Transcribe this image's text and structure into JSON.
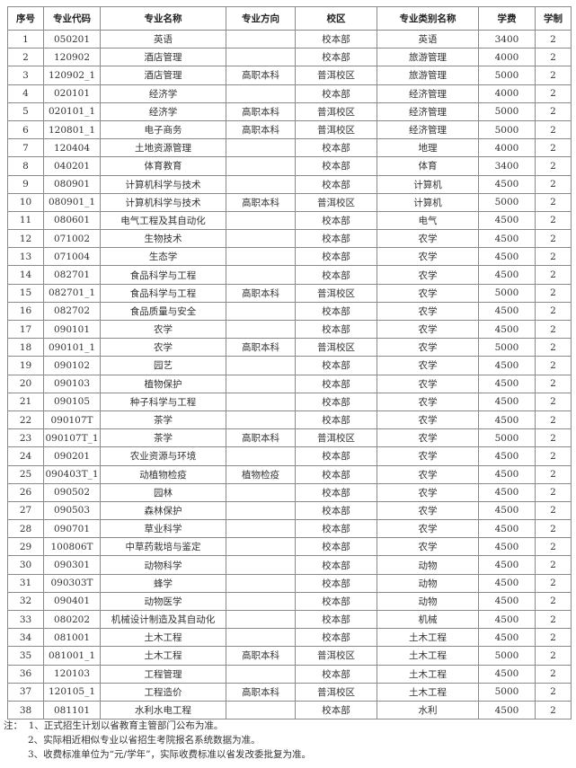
{
  "table": {
    "headers": [
      "序号",
      "专业代码",
      "专业名称",
      "专业方向",
      "校区",
      "专业类别名称",
      "学费",
      "学制"
    ],
    "rows": [
      [
        "1",
        "050201",
        "英语",
        "",
        "校本部",
        "英语",
        "3400",
        "2"
      ],
      [
        "2",
        "120902",
        "酒店管理",
        "",
        "校本部",
        "旅游管理",
        "4000",
        "2"
      ],
      [
        "3",
        "120902_1",
        "酒店管理",
        "高职本科",
        "普洱校区",
        "旅游管理",
        "5000",
        "2"
      ],
      [
        "4",
        "020101",
        "经济学",
        "",
        "校本部",
        "经济管理",
        "4000",
        "2"
      ],
      [
        "5",
        "020101_1",
        "经济学",
        "高职本科",
        "普洱校区",
        "经济管理",
        "5000",
        "2"
      ],
      [
        "6",
        "120801_1",
        "电子商务",
        "高职本科",
        "普洱校区",
        "经济管理",
        "5000",
        "2"
      ],
      [
        "7",
        "120404",
        "土地资源管理",
        "",
        "校本部",
        "地理",
        "4000",
        "2"
      ],
      [
        "8",
        "040201",
        "体育教育",
        "",
        "校本部",
        "体育",
        "3400",
        "2"
      ],
      [
        "9",
        "080901",
        "计算机科学与技术",
        "",
        "校本部",
        "计算机",
        "4500",
        "2"
      ],
      [
        "10",
        "080901_1",
        "计算机科学与技术",
        "高职本科",
        "普洱校区",
        "计算机",
        "5000",
        "2"
      ],
      [
        "11",
        "080601",
        "电气工程及其自动化",
        "",
        "校本部",
        "电气",
        "4500",
        "2"
      ],
      [
        "12",
        "071002",
        "生物技术",
        "",
        "校本部",
        "农学",
        "4500",
        "2"
      ],
      [
        "13",
        "071004",
        "生态学",
        "",
        "校本部",
        "农学",
        "4500",
        "2"
      ],
      [
        "14",
        "082701",
        "食品科学与工程",
        "",
        "校本部",
        "农学",
        "4500",
        "2"
      ],
      [
        "15",
        "082701_1",
        "食品科学与工程",
        "高职本科",
        "普洱校区",
        "农学",
        "5000",
        "2"
      ],
      [
        "16",
        "082702",
        "食品质量与安全",
        "",
        "校本部",
        "农学",
        "4500",
        "2"
      ],
      [
        "17",
        "090101",
        "农学",
        "",
        "校本部",
        "农学",
        "4500",
        "2"
      ],
      [
        "18",
        "090101_1",
        "农学",
        "高职本科",
        "普洱校区",
        "农学",
        "5000",
        "2"
      ],
      [
        "19",
        "090102",
        "园艺",
        "",
        "校本部",
        "农学",
        "4500",
        "2"
      ],
      [
        "20",
        "090103",
        "植物保护",
        "",
        "校本部",
        "农学",
        "4500",
        "2"
      ],
      [
        "21",
        "090105",
        "种子科学与工程",
        "",
        "校本部",
        "农学",
        "4500",
        "2"
      ],
      [
        "22",
        "090107T",
        "茶学",
        "",
        "校本部",
        "农学",
        "4500",
        "2"
      ],
      [
        "23",
        "090107T_1",
        "茶学",
        "高职本科",
        "普洱校区",
        "农学",
        "5000",
        "2"
      ],
      [
        "24",
        "090201",
        "农业资源与环境",
        "",
        "校本部",
        "农学",
        "4500",
        "2"
      ],
      [
        "25",
        "090403T_1",
        "动植物检疫",
        "植物检疫",
        "校本部",
        "农学",
        "4500",
        "2"
      ],
      [
        "26",
        "090502",
        "园林",
        "",
        "校本部",
        "农学",
        "4500",
        "2"
      ],
      [
        "27",
        "090503",
        "森林保护",
        "",
        "校本部",
        "农学",
        "4500",
        "2"
      ],
      [
        "28",
        "090701",
        "草业科学",
        "",
        "校本部",
        "农学",
        "4500",
        "2"
      ],
      [
        "29",
        "100806T",
        "中草药栽培与鉴定",
        "",
        "校本部",
        "农学",
        "4500",
        "2"
      ],
      [
        "30",
        "090301",
        "动物科学",
        "",
        "校本部",
        "动物",
        "4500",
        "2"
      ],
      [
        "31",
        "090303T",
        "蜂学",
        "",
        "校本部",
        "动物",
        "4500",
        "2"
      ],
      [
        "32",
        "090401",
        "动物医学",
        "",
        "校本部",
        "动物",
        "4500",
        "2"
      ],
      [
        "33",
        "080202",
        "机械设计制造及其自动化",
        "",
        "校本部",
        "机械",
        "4500",
        "2"
      ],
      [
        "34",
        "081001",
        "土木工程",
        "",
        "校本部",
        "土木工程",
        "4500",
        "2"
      ],
      [
        "35",
        "081001_1",
        "土木工程",
        "高职本科",
        "普洱校区",
        "土木工程",
        "5000",
        "2"
      ],
      [
        "36",
        "120103",
        "工程管理",
        "",
        "校本部",
        "土木工程",
        "4500",
        "2"
      ],
      [
        "37",
        "120105_1",
        "工程造价",
        "高职本科",
        "普洱校区",
        "土木工程",
        "5000",
        "2"
      ],
      [
        "38",
        "081101",
        "水利水电工程",
        "",
        "校本部",
        "水利",
        "4500",
        "2"
      ]
    ]
  },
  "notes": {
    "prefix": "注：",
    "items": [
      "1、正式招生计划以省教育主管部门公布为准。",
      "2、实际相近相似专业以省招生考院报名系统数据为准。",
      "3、收费标准单位为“元/学年”，实际收费标准以省发改委批复为准。"
    ]
  }
}
